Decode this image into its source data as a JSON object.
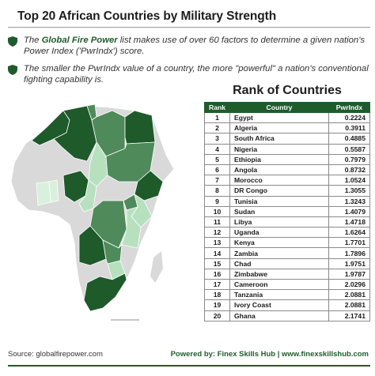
{
  "title": "Top 20 African Countries by Military Strength",
  "bullets": [
    {
      "prefix": "The ",
      "highlight": "Global Fire Power",
      "text": " list makes use of over 60 factors to determine a given nation's Power Index ('PwrIndx') score."
    },
    {
      "prefix": "",
      "highlight": "",
      "text": "The smaller the PwrIndx value of a country, the more \"powerful\" a nation's conventional fighting capability is."
    }
  ],
  "colors": {
    "primary_green": "#1f5c2c",
    "dark_green": "#1e5a2a",
    "mid_green": "#4f8a5a",
    "light_green": "#b7e0bf",
    "pale_green": "#d9f0dc",
    "no_data": "#d9d9d9"
  },
  "map": {
    "alt_icon": "africa-map"
  },
  "chart_data": {
    "type": "table",
    "title": "Rank of Countries",
    "columns": [
      "Rank",
      "Country",
      "PwrIndx"
    ],
    "rows": [
      {
        "rank": "1",
        "country": "Egypt",
        "pwrindx": "0.2224"
      },
      {
        "rank": "2",
        "country": "Algeria",
        "pwrindx": "0.3911"
      },
      {
        "rank": "3",
        "country": "South Africa",
        "pwrindx": "0.4885"
      },
      {
        "rank": "4",
        "country": "Nigeria",
        "pwrindx": "0.5587"
      },
      {
        "rank": "5",
        "country": "Ethiopia",
        "pwrindx": "0.7979"
      },
      {
        "rank": "6",
        "country": "Angola",
        "pwrindx": "0.8732"
      },
      {
        "rank": "7",
        "country": "Morocco",
        "pwrindx": "1.0524"
      },
      {
        "rank": "8",
        "country": "DR Congo",
        "pwrindx": "1.3055"
      },
      {
        "rank": "9",
        "country": "Tunisia",
        "pwrindx": "1.3243"
      },
      {
        "rank": "10",
        "country": "Sudan",
        "pwrindx": "1.4079"
      },
      {
        "rank": "11",
        "country": "Libya",
        "pwrindx": "1.4718"
      },
      {
        "rank": "12",
        "country": "Uganda",
        "pwrindx": "1.6264"
      },
      {
        "rank": "13",
        "country": "Kenya",
        "pwrindx": "1.7701"
      },
      {
        "rank": "14",
        "country": "Zambia",
        "pwrindx": "1.7896"
      },
      {
        "rank": "15",
        "country": "Chad",
        "pwrindx": "1.9751"
      },
      {
        "rank": "16",
        "country": "Zimbabwe",
        "pwrindx": "1.9787"
      },
      {
        "rank": "17",
        "country": "Cameroon",
        "pwrindx": "2.0296"
      },
      {
        "rank": "18",
        "country": "Tanzania",
        "pwrindx": "2.0881"
      },
      {
        "rank": "19",
        "country": "Ivory Coast",
        "pwrindx": "2.0881"
      },
      {
        "rank": "20",
        "country": "Ghana",
        "pwrindx": "2.1741"
      }
    ]
  },
  "footer": {
    "source": "Source: globalfirepower.com",
    "credit": "Powered by: Finex Skills Hub | www.finexskillshub.com"
  }
}
